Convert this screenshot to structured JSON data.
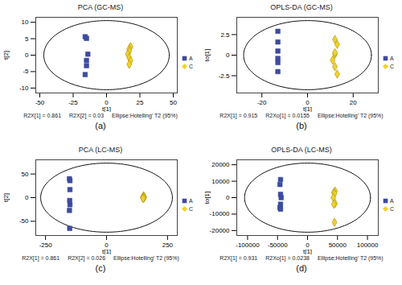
{
  "chart_data": [
    {
      "type": "scatter",
      "title": "PCA (GC-MS)",
      "panel_label": "(a)",
      "xlabel": "t[1]",
      "ylabel": "t[2]",
      "xlim": [
        -53,
        53
      ],
      "ylim": [
        -11.5,
        11.5
      ],
      "xticks": [
        -50,
        -25,
        0,
        25,
        50
      ],
      "yticks": [
        -10,
        -5,
        0,
        5,
        10
      ],
      "ellipse": {
        "x_radius": 47,
        "y_radius": 10.5
      },
      "annotations": [
        "R2X[1] = 0.861",
        "R2X[2] = 0.03",
        "Ellipse:Hotelling' T2 (95%)"
      ],
      "series": [
        {
          "name": "A",
          "color": "#3c4ba0",
          "marker": "square",
          "x": [
            -16,
            -15,
            -14,
            -15,
            -15,
            -16
          ],
          "y": [
            5.6,
            5.1,
            0.3,
            -1.6,
            -3.2,
            -5.9
          ]
        },
        {
          "name": "C",
          "color": "#f2d22a",
          "marker": "diamond",
          "x": [
            18,
            17,
            17,
            16,
            17,
            18,
            17
          ],
          "y": [
            2.6,
            1.9,
            1.2,
            0.3,
            -0.8,
            -1.6,
            -2.8
          ]
        }
      ]
    },
    {
      "type": "scatter",
      "title": "OPLS-DA (GC-MS)",
      "panel_label": "(b)",
      "xlabel": "t[1]",
      "ylabel": "to[1]",
      "xlim": [
        -31,
        31
      ],
      "ylim": [
        -4.6,
        4.6
      ],
      "xticks": [
        -20,
        0,
        20
      ],
      "yticks": [
        -2.5,
        0,
        2.5
      ],
      "ellipse": {
        "x_radius": 28,
        "y_radius": 4.2
      },
      "annotations": [
        "R2X[1] = 0.915",
        "R2Xo[1] = 0.0155",
        "Ellipse:Hotelling' T2 (95%)"
      ],
      "series": [
        {
          "name": "A",
          "color": "#3c4ba0",
          "marker": "square",
          "x": [
            -13,
            -13,
            -13,
            -13,
            -13,
            -13
          ],
          "y": [
            2.9,
            1.6,
            0.5,
            -0.4,
            -0.9,
            -2.0
          ]
        },
        {
          "name": "C",
          "color": "#f2d22a",
          "marker": "diamond",
          "x": [
            12,
            13,
            12,
            11,
            12,
            13,
            12
          ],
          "y": [
            1.9,
            1.3,
            0.1,
            -0.6,
            -1.4,
            -2.3,
            0.3
          ]
        }
      ]
    },
    {
      "type": "scatter",
      "title": "PCA (LC-MS)",
      "panel_label": "(c)",
      "xlabel": "t[1]",
      "ylabel": "t[2]",
      "xlim": [
        -290,
        290
      ],
      "ylim": [
        -80,
        80
      ],
      "xticks": [
        -250,
        0,
        250
      ],
      "yticks": [
        -50,
        0,
        50
      ],
      "ellipse": {
        "x_radius": 270,
        "y_radius": 73
      },
      "annotations": [
        "R2X[1] = 0.861",
        "R2X[2] = 0.026",
        "Ellipse:Hotelling' T2 (95%)"
      ],
      "series": [
        {
          "name": "A",
          "color": "#3c4ba0",
          "marker": "square",
          "x": [
            -152,
            -150,
            -150,
            -151,
            -150,
            -152,
            -151
          ],
          "y": [
            40,
            36,
            17,
            -6,
            -15,
            -27,
            -65
          ]
        },
        {
          "name": "C",
          "color": "#f2d22a",
          "marker": "diamond",
          "x": [
            152,
            150,
            155,
            148,
            153,
            150
          ],
          "y": [
            4,
            2,
            1,
            0,
            -1,
            -2
          ]
        }
      ]
    },
    {
      "type": "scatter",
      "title": "OPLS-DA (LC-MS)",
      "panel_label": "(d)",
      "xlabel": "t[1]",
      "ylabel": "to[1]",
      "xlim": [
        -118000,
        118000
      ],
      "ylim": [
        -23000,
        23000
      ],
      "xticks": [
        -100000,
        -50000,
        0,
        50000,
        100000
      ],
      "yticks": [
        -20000,
        -10000,
        0,
        10000,
        20000
      ],
      "ellipse": {
        "x_radius": 105000,
        "y_radius": 21000
      },
      "annotations": [
        "R2X[1] = 0.931",
        "R2Xo[1] = 0.0238",
        "Ellipse:Hotelling' T2 (95%)"
      ],
      "series": [
        {
          "name": "A",
          "color": "#3c4ba0",
          "marker": "square",
          "x": [
            -45000,
            -46000,
            -45000,
            -44000,
            -45000,
            -46000,
            -45000
          ],
          "y": [
            11000,
            8000,
            2000,
            0,
            -4000,
            -6000,
            -7000
          ]
        },
        {
          "name": "C",
          "color": "#f2d22a",
          "marker": "diamond",
          "x": [
            46000,
            44000,
            45000,
            43000,
            46000,
            44000,
            45000
          ],
          "y": [
            4000,
            3200,
            2500,
            0,
            -3500,
            -4000,
            -15000
          ]
        }
      ]
    }
  ]
}
